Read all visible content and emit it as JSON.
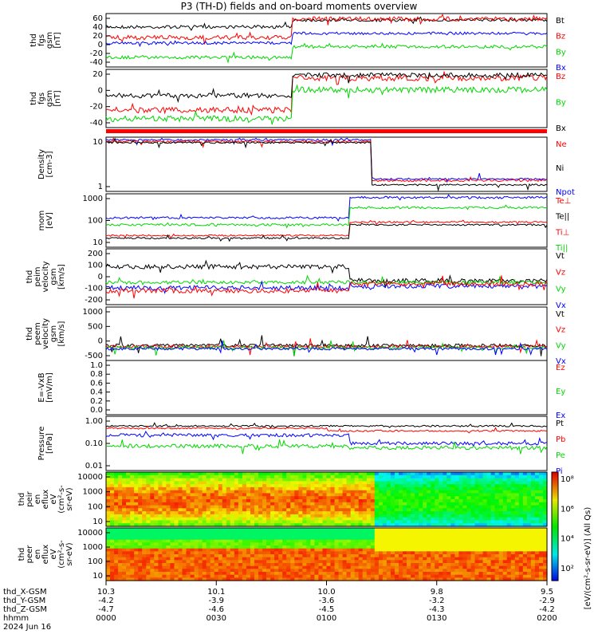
{
  "title": "P3 (TH-D) fields and on-board moments overview",
  "colors": {
    "black": "#000000",
    "red": "#ff0000",
    "green": "#00d800",
    "blue": "#0000ff"
  },
  "chart_data": {
    "type": "line",
    "time_axis": {
      "ticks": [
        "0000",
        "0030",
        "0100",
        "0130",
        "0200"
      ],
      "rows": [
        {
          "label": "thd_X-GSM",
          "values": [
            "10.3",
            "10.1",
            "10.0",
            "9.8",
            "9.5"
          ]
        },
        {
          "label": "thd_Y-GSM",
          "values": [
            "-4.2",
            "-3.9",
            "-3.6",
            "-3.2",
            "-2.9"
          ]
        },
        {
          "label": "thd_Z-GSM",
          "values": [
            "-4.7",
            "-4.6",
            "-4.5",
            "-4.3",
            "-4.2"
          ]
        },
        {
          "label": "hhmm",
          "values": [
            "",
            "",
            "",
            "",
            ""
          ]
        }
      ],
      "date": "2024 Jun 16"
    },
    "panels": [
      {
        "id": "fgs",
        "ylabel": [
          "thd",
          "fgs",
          "gsm",
          "[nT]"
        ],
        "yticks": [
          "60",
          "40",
          "20",
          "0",
          "-20",
          "-40"
        ],
        "ylim": [
          -50,
          70
        ],
        "legend": [
          {
            "text": "Bt",
            "color": "#000000"
          },
          {
            "text": "Bz",
            "color": "#ff0000"
          },
          {
            "text": "By",
            "color": "#00d800"
          },
          {
            "text": "Bx",
            "color": "#0000ff"
          }
        ]
      },
      {
        "id": "fgs_dsl",
        "ylabel": [
          "thd",
          "fgs",
          "gsm",
          "[nT]"
        ],
        "yticks": [
          "20",
          "0",
          "-20",
          "-40"
        ],
        "ylim": [
          -55,
          25
        ],
        "legend": [
          {
            "text": "Bz",
            "color": "#ff0000"
          },
          {
            "text": "By",
            "color": "#00d800"
          },
          {
            "text": "Bx",
            "color": "#000000"
          }
        ]
      },
      {
        "id": "density",
        "ylabel": [
          "Density",
          "[cm-3]"
        ],
        "yticks": [
          "10",
          "1"
        ],
        "log": true,
        "legend": [
          {
            "text": "Ne",
            "color": "#ff0000"
          },
          {
            "text": "Ni",
            "color": "#000000"
          },
          {
            "text": "Npot",
            "color": "#0000ff"
          }
        ]
      },
      {
        "id": "temp",
        "ylabel": [
          "mom",
          "[eV]"
        ],
        "yticks": [
          "1000",
          "100",
          "10"
        ],
        "log": true,
        "legend": [
          {
            "text": "Te⊥",
            "color": "#ff0000"
          },
          {
            "text": "Te||",
            "color": "#000000"
          },
          {
            "text": "Ti⊥",
            "color": "#ff0000"
          },
          {
            "text": "Ti||",
            "color": "#00d800"
          }
        ]
      },
      {
        "id": "vi",
        "ylabel": [
          "thd",
          "peim",
          "velocity",
          "gsm",
          "[km/s]"
        ],
        "yticks": [
          "200",
          "100",
          "0",
          "-100",
          "-200"
        ],
        "legend": [
          {
            "text": "Vt",
            "color": "#000000"
          },
          {
            "text": "Vz",
            "color": "#ff0000"
          },
          {
            "text": "Vy",
            "color": "#00d800"
          },
          {
            "text": "Vx",
            "color": "#0000ff"
          }
        ]
      },
      {
        "id": "ve",
        "ylabel": [
          "thd",
          "peem",
          "velocity",
          "gsm",
          "[km/s]"
        ],
        "yticks": [
          "1000",
          "500",
          "0",
          "-500"
        ],
        "legend": [
          {
            "text": "Vt",
            "color": "#000000"
          },
          {
            "text": "Vz",
            "color": "#ff0000"
          },
          {
            "text": "Vy",
            "color": "#00d800"
          },
          {
            "text": "Vx",
            "color": "#0000ff"
          }
        ]
      },
      {
        "id": "efield",
        "ylabel": [
          "E=-VxB",
          "[mV/m]"
        ],
        "yticks": [
          "1.0",
          "0.8",
          "0.6",
          "0.4",
          "0.2",
          "0.0"
        ],
        "legend": [
          {
            "text": "Ez",
            "color": "#ff0000"
          },
          {
            "text": "Ey",
            "color": "#00d800"
          },
          {
            "text": "Ex",
            "color": "#0000ff"
          }
        ]
      },
      {
        "id": "pressure",
        "ylabel": [
          "Pressure",
          "[nPa]"
        ],
        "yticks": [
          "1.00",
          "0.10",
          "0.01"
        ],
        "log": true,
        "legend": [
          {
            "text": "Pt",
            "color": "#000000"
          },
          {
            "text": "Pb",
            "color": "#ff0000"
          },
          {
            "text": "Pe",
            "color": "#00d800"
          },
          {
            "text": "Pi",
            "color": "#0000ff"
          }
        ]
      },
      {
        "id": "ion_spec",
        "ylabel": [
          "thd",
          "peir",
          "en",
          "eflux",
          "eV",
          "(cm²-s-",
          "sr-eV)"
        ],
        "yticks": [
          "10000",
          "1000",
          "100",
          "10"
        ],
        "type": "heatmap"
      },
      {
        "id": "ele_spec",
        "ylabel": [
          "thd",
          "peer",
          "en",
          "eflux",
          "eV",
          "(cm²-s-",
          "sr-eV)"
        ],
        "yticks": [
          "10000",
          "1000",
          "100",
          "10"
        ],
        "type": "heatmap"
      }
    ],
    "colorbar": {
      "ticks": [
        "10⁸",
        "10⁶",
        "10⁴",
        "10²"
      ],
      "label": "[eV/(cm²-s-sr-eV)] (All Qs)"
    }
  }
}
